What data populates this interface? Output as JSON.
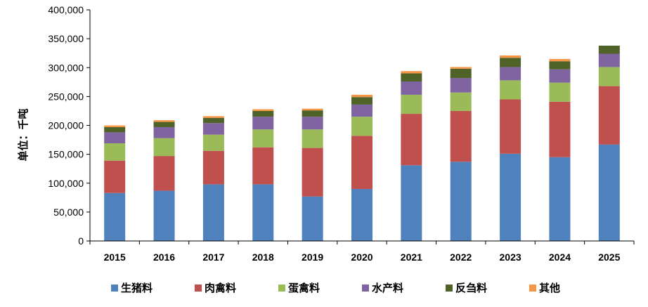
{
  "chart_data": {
    "type": "bar",
    "stacked": true,
    "title": "",
    "xlabel": "",
    "ylabel": "单位：千吨",
    "ylim": [
      0,
      400000
    ],
    "ytick_step": 50000,
    "ytick_labels": [
      "0",
      "50,000",
      "100,000",
      "150,000",
      "200,000",
      "250,000",
      "300,000",
      "350,000",
      "400,000"
    ],
    "grid": false,
    "legend_position": "bottom",
    "categories": [
      "2015",
      "2016",
      "2017",
      "2018",
      "2019",
      "2020",
      "2021",
      "2022",
      "2023",
      "2024",
      "2025"
    ],
    "series": [
      {
        "name": "生猪料",
        "color": "#4F81BD",
        "values": [
          83000,
          87000,
          98000,
          98000,
          77000,
          90000,
          131000,
          137000,
          151000,
          145000,
          167000
        ]
      },
      {
        "name": "肉禽料",
        "color": "#C0504D",
        "values": [
          56000,
          60000,
          58000,
          64000,
          84000,
          92000,
          89000,
          88000,
          94000,
          96000,
          101000
        ]
      },
      {
        "name": "蛋禽料",
        "color": "#9BBB59",
        "values": [
          30000,
          31000,
          28000,
          31000,
          32000,
          33000,
          33000,
          32000,
          33000,
          33000,
          33000
        ]
      },
      {
        "name": "水产料",
        "color": "#8064A2",
        "values": [
          19000,
          19000,
          20000,
          22000,
          22000,
          21000,
          23000,
          25000,
          23000,
          23000,
          23000
        ]
      },
      {
        "name": "反刍料",
        "color": "#4F6228",
        "values": [
          9000,
          9000,
          9000,
          10000,
          11000,
          13000,
          14000,
          16000,
          16000,
          14000,
          14000
        ]
      },
      {
        "name": "其他",
        "color": "#F79646",
        "values": [
          3000,
          3000,
          3000,
          3000,
          3000,
          4000,
          4000,
          3000,
          4000,
          4000,
          0
        ]
      }
    ]
  }
}
